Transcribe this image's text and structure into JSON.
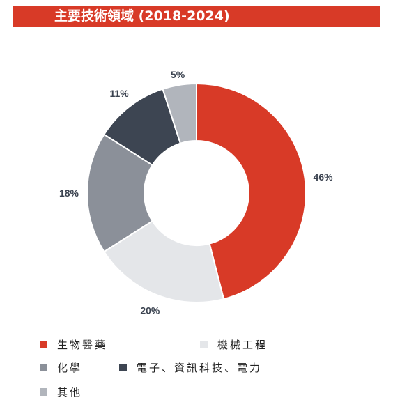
{
  "title": "主要技術領域 (2018-2024)",
  "colors": {
    "title_bg": "#d83a27",
    "title_text": "#ffffff",
    "label_text": "#3b4350"
  },
  "chart_data": {
    "type": "pie",
    "donut": true,
    "title": "主要技術領域 (2018-2024)",
    "legend_position": "bottom",
    "series": [
      {
        "name": "生物醫藥",
        "value": 46,
        "label": "46%",
        "color": "#d83a27"
      },
      {
        "name": "機械工程",
        "value": 20,
        "label": "20%",
        "color": "#e4e6e9"
      },
      {
        "name": "化學",
        "value": 18,
        "label": "18%",
        "color": "#8b9099"
      },
      {
        "name": "電子、資訊科技、電力",
        "value": 11,
        "label": "11%",
        "color": "#3d4552"
      },
      {
        "name": "其他",
        "value": 5,
        "label": "5%",
        "color": "#b1b5bc"
      }
    ]
  },
  "legend": [
    {
      "label": "生物醫藥",
      "color": "#d83a27"
    },
    {
      "label": "機械工程",
      "color": "#e4e6e9"
    },
    {
      "label": "化學",
      "color": "#8b9099"
    },
    {
      "label": "電子、資訊科技、電力",
      "color": "#3d4552"
    },
    {
      "label": "其他",
      "color": "#b1b5bc"
    }
  ]
}
